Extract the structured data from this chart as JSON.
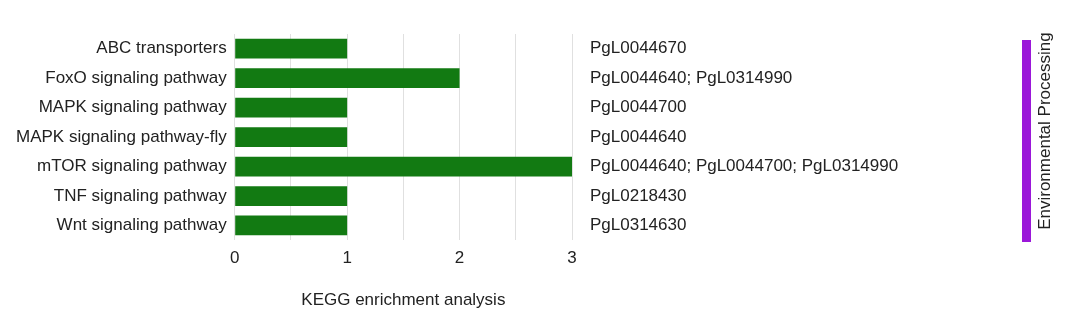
{
  "chart_data": {
    "type": "bar",
    "orientation": "horizontal",
    "xlabel": "KEGG enrichment analysis",
    "categories": [
      "ABC transporters",
      "FoxO signaling pathway",
      "MAPK signaling pathway",
      "MAPK signaling pathway-fly",
      "mTOR signaling pathway",
      "TNF signaling pathway",
      "Wnt signaling pathway"
    ],
    "values": [
      1,
      2,
      1,
      1,
      3,
      1,
      1
    ],
    "color": "#127a12",
    "xlim": [
      0,
      3
    ],
    "xticks": [
      0,
      {
        "value": 0.5,
        "label": null
      },
      1,
      {
        "value": 1.5,
        "label": null
      },
      2,
      {
        "value": 2.5,
        "label": null
      },
      3
    ],
    "grid": "x",
    "annotations": [
      "PgL0044670",
      "PgL0044640; PgL0314990",
      "PgL0044700",
      "PgL0044640",
      "PgL0044640; PgL0044700; PgL0314990",
      "PgL0218430",
      "PgL0314630",
      "Environmental Processing"
    ]
  }
}
